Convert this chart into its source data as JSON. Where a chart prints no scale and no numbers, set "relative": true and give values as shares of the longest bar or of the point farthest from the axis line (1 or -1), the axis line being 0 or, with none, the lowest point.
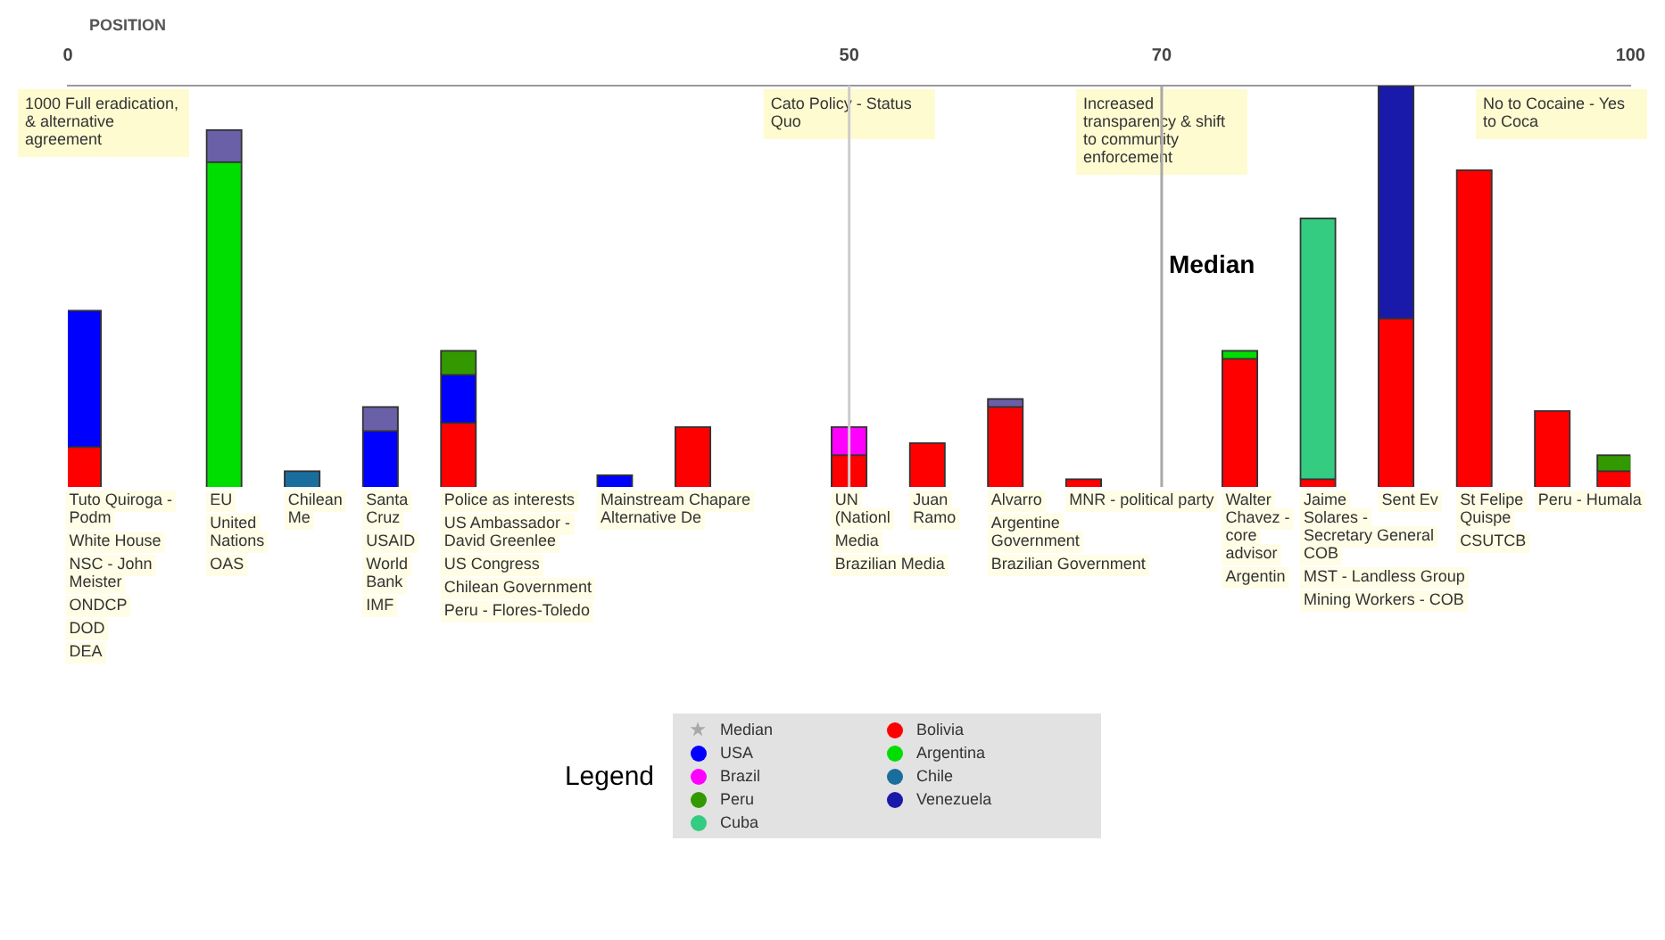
{
  "chart_data": {
    "type": "bar",
    "xlabel": "POSITION",
    "legend_title": "Legend",
    "legend": "bottom",
    "stacked": true,
    "relative": true,
    "x": [
      1,
      10,
      15,
      20,
      25,
      35,
      40,
      50,
      55,
      60,
      65,
      75,
      80,
      85,
      90,
      95,
      99
    ],
    "xlim": [
      0,
      100
    ],
    "xticks": [
      0,
      50,
      70,
      100
    ],
    "ref_lines": [
      {
        "axis": "x",
        "value": 50,
        "color": "#cccccc"
      },
      {
        "axis": "x",
        "value": 70,
        "label": "Median",
        "color": "#a8a8a8"
      }
    ],
    "series": [
      {
        "name": "Bolivia",
        "color": "#ff0000",
        "values": [
          0.1,
          null,
          null,
          null,
          0.16,
          null,
          0.15,
          0.08,
          0.11,
          0.2,
          0.02,
          0.32,
          0.02,
          0.42,
          0.79,
          0.19,
          0.04
        ]
      },
      {
        "name": "USA",
        "color": "#0000ff",
        "values": [
          0.34,
          null,
          null,
          0.14,
          0.12,
          0.03,
          null,
          null,
          null,
          null,
          null,
          null,
          null,
          null,
          null,
          null,
          null
        ]
      },
      {
        "name": "Argentina",
        "color": "#00dd00",
        "values": [
          null,
          0.81,
          null,
          null,
          null,
          null,
          null,
          null,
          null,
          null,
          null,
          0.02,
          null,
          null,
          null,
          null,
          null
        ]
      },
      {
        "name": "Brazil",
        "color": "#ff00ff",
        "values": [
          null,
          null,
          null,
          null,
          null,
          null,
          null,
          0.07,
          null,
          null,
          null,
          null,
          null,
          null,
          null,
          null,
          null
        ]
      },
      {
        "name": "Chile",
        "color": "#1a6e9e",
        "values": [
          null,
          null,
          0.04,
          null,
          null,
          null,
          null,
          null,
          null,
          null,
          null,
          null,
          null,
          null,
          null,
          null,
          null
        ]
      },
      {
        "name": "Peru",
        "color": "#339900",
        "values": [
          null,
          null,
          null,
          null,
          0.06,
          null,
          null,
          null,
          null,
          null,
          null,
          null,
          null,
          null,
          null,
          null,
          0.04
        ]
      },
      {
        "name": "Venezuela",
        "color": "#1a1aaa",
        "values": [
          null,
          null,
          null,
          null,
          null,
          null,
          null,
          null,
          null,
          null,
          null,
          null,
          null,
          0.58,
          null,
          null,
          null
        ]
      },
      {
        "name": "Cuba",
        "color": "#33cc80",
        "values": [
          null,
          null,
          null,
          null,
          null,
          null,
          null,
          null,
          null,
          null,
          null,
          null,
          0.65,
          null,
          null,
          null,
          null
        ]
      },
      {
        "color": "#6a60a8",
        "values": [
          null,
          0.08,
          null,
          0.06,
          null,
          null,
          null,
          null,
          null,
          0.02,
          null,
          null,
          null,
          null,
          null,
          null,
          null
        ]
      }
    ],
    "annotations": [
      "1000 Full eradication, & alternative agreement",
      "Cato Policy - Status Quo",
      "Increased transparency & shift to community enforcement",
      "No to Cocaine - Yes to Coca",
      {
        "text": "Tuto Quiroga - Podm\nWhite House\nNSC - John Meister\nONDCP\nDOD\nDEA",
        "x": 1,
        "y": 0
      },
      {
        "text": "EU\nUnited Nations\nOAS",
        "x": 10,
        "y": 0
      },
      {
        "text": "Chilean Me",
        "x": 15,
        "y": 0
      },
      {
        "text": "Santa Cruz\nUSAID\nWorld Bank\nIMF",
        "x": 20,
        "y": 0
      },
      {
        "text": "Police as interests\nUS Ambassador - David Greenlee\nUS Congress\nChilean Government\nPeru - Flores-Toledo",
        "x": 25,
        "y": 0
      },
      {
        "text": "Mainstream Chapare Alternative De",
        "x": 35,
        "y": 0
      },
      {
        "text": "UN (Nationl\nMedia\nBrazilian Media",
        "x": 50,
        "y": 0
      },
      {
        "text": "Juan Ramo",
        "x": 55,
        "y": 0
      },
      {
        "text": "Alvarro\nArgentine Government\nBrazilian Government",
        "x": 60,
        "y": 0
      },
      {
        "text": "MNR - political party",
        "x": 65,
        "y": 0
      },
      {
        "text": "Walter Chavez - core advisor\nArgentin",
        "x": 75,
        "y": 0
      },
      {
        "text": "Jaime Solares - Secretary General COB\nMST - Landless Group\nMining Workers - COB",
        "x": 80,
        "y": 0
      },
      {
        "text": "Sent Ev",
        "x": 85,
        "y": 0
      },
      {
        "text": "St Felipe Quispe\nCSUTCB",
        "x": 90,
        "y": 0
      },
      {
        "text": "Peru - Humala",
        "x": 95,
        "y": 0
      }
    ]
  }
}
